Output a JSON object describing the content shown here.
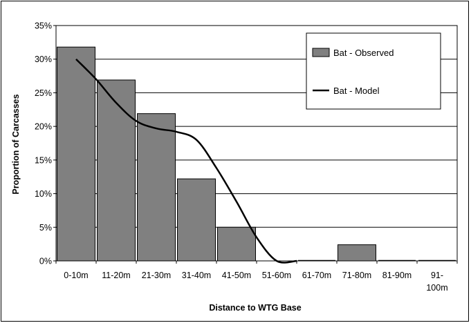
{
  "chart_data": {
    "type": "bar",
    "title": "",
    "xlabel": "Distance to WTG Base",
    "ylabel": "Proportion of Carcasses",
    "categories": [
      "0-10m",
      "11-20m",
      "21-30m",
      "31-40m",
      "41-50m",
      "51-60m",
      "61-70m",
      "71-80m",
      "81-90m",
      "91-100m"
    ],
    "category_lines": [
      [
        "0-10m"
      ],
      [
        "11-20m"
      ],
      [
        "21-30m"
      ],
      [
        "31-40m"
      ],
      [
        "41-50m"
      ],
      [
        "51-60m"
      ],
      [
        "61-70m"
      ],
      [
        "71-80m"
      ],
      [
        "81-90m"
      ],
      [
        "91-",
        "100m"
      ]
    ],
    "ylim": [
      0,
      35
    ],
    "yticks": [
      0,
      5,
      10,
      15,
      20,
      25,
      30,
      35
    ],
    "ytick_labels": [
      "0%",
      "5%",
      "10%",
      "15%",
      "20%",
      "25%",
      "30%",
      "35%"
    ],
    "grid": true,
    "legend_position": "top-right",
    "series": [
      {
        "name": "Bat - Observed",
        "kind": "bar",
        "color": "#808080",
        "values": [
          31.8,
          26.9,
          21.9,
          12.2,
          5.0,
          0,
          0,
          2.4,
          0,
          0
        ]
      },
      {
        "name": "Bat - Model",
        "kind": "line",
        "color": "#000000",
        "x": [
          0,
          0.5,
          1,
          1.5,
          2,
          2.5,
          3,
          3.5,
          4,
          4.5,
          5,
          5.5
        ],
        "values": [
          30.0,
          27.0,
          23.5,
          20.8,
          19.7,
          19.2,
          18.0,
          13.8,
          8.8,
          3.5,
          0.0,
          0.0
        ]
      }
    ]
  }
}
